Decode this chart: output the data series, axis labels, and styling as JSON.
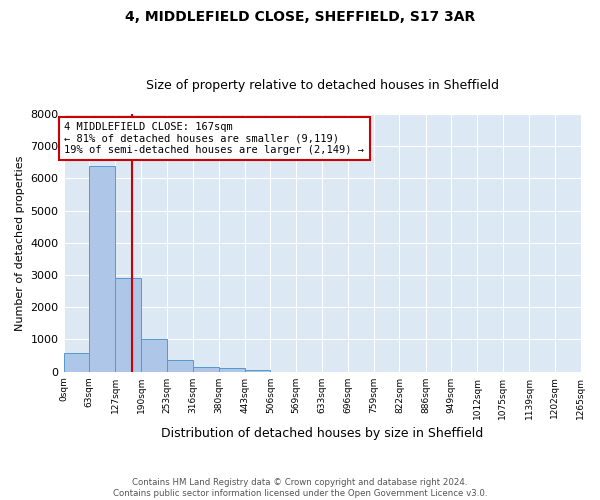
{
  "title": "4, MIDDLEFIELD CLOSE, SHEFFIELD, S17 3AR",
  "subtitle": "Size of property relative to detached houses in Sheffield",
  "xlabel": "Distribution of detached houses by size in Sheffield",
  "ylabel": "Number of detached properties",
  "bar_edges": [
    0,
    63,
    127,
    190,
    253,
    316,
    380,
    443,
    506,
    569,
    633,
    696,
    759,
    822,
    886,
    949,
    1012,
    1075,
    1139,
    1202,
    1265
  ],
  "bar_heights": [
    580,
    6400,
    2900,
    1000,
    370,
    160,
    100,
    60,
    0,
    0,
    0,
    0,
    0,
    0,
    0,
    0,
    0,
    0,
    0,
    0
  ],
  "bar_color": "#aec6e8",
  "bar_edge_color": "#5599cc",
  "property_line_x": 167,
  "property_line_color": "#cc0000",
  "annotation_line1": "4 MIDDLEFIELD CLOSE: 167sqm",
  "annotation_line2": "← 81% of detached houses are smaller (9,119)",
  "annotation_line3": "19% of semi-detached houses are larger (2,149) →",
  "annotation_box_color": "#cc0000",
  "ylim": [
    0,
    8000
  ],
  "yticks": [
    0,
    1000,
    2000,
    3000,
    4000,
    5000,
    6000,
    7000,
    8000
  ],
  "xtick_labels": [
    "0sqm",
    "63sqm",
    "127sqm",
    "190sqm",
    "253sqm",
    "316sqm",
    "380sqm",
    "443sqm",
    "506sqm",
    "569sqm",
    "633sqm",
    "696sqm",
    "759sqm",
    "822sqm",
    "886sqm",
    "949sqm",
    "1012sqm",
    "1075sqm",
    "1139sqm",
    "1202sqm",
    "1265sqm"
  ],
  "footer": "Contains HM Land Registry data © Crown copyright and database right 2024.\nContains public sector information licensed under the Open Government Licence v3.0.",
  "bg_color": "#dce9f5",
  "title_fontsize": 10,
  "subtitle_fontsize": 9,
  "ylabel_fontsize": 8,
  "xlabel_fontsize": 9
}
